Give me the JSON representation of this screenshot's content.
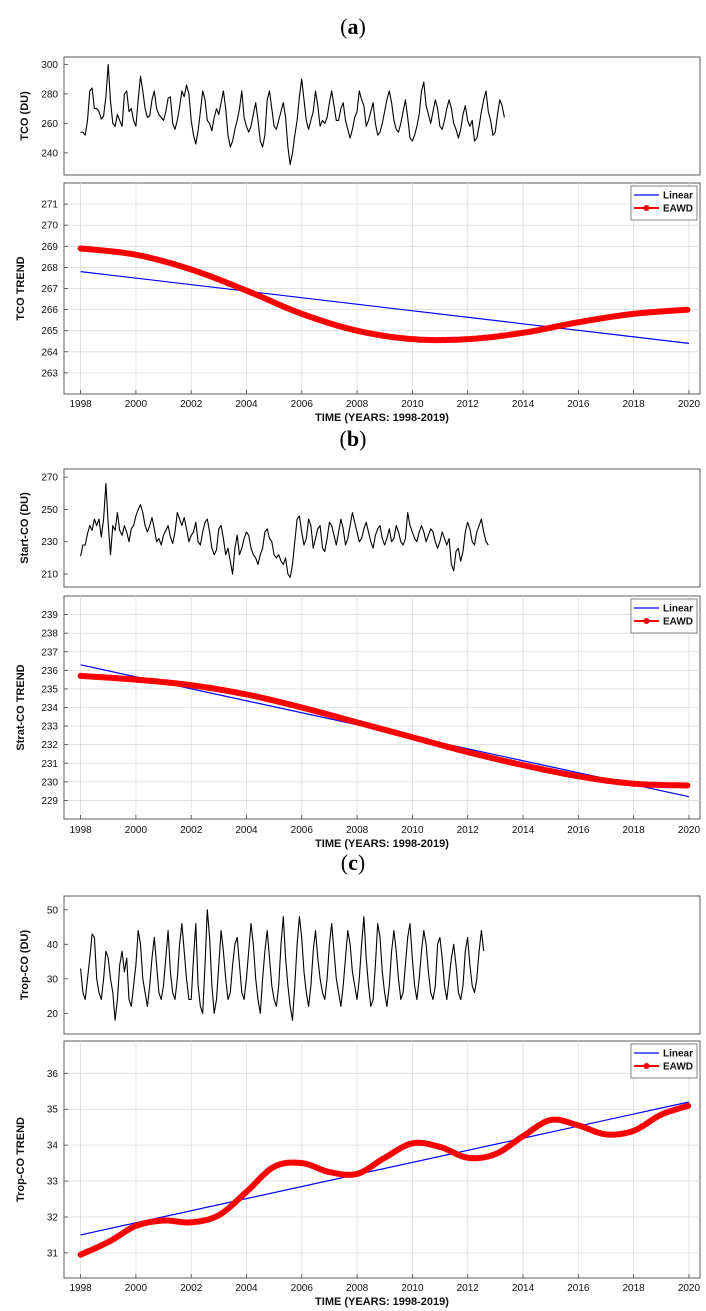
{
  "panels": [
    {
      "label": "a",
      "chart_data": [
        {
          "type": "line",
          "ylabel": "TCO (DU)",
          "ylim": [
            225,
            305
          ],
          "yticks": [
            240,
            260,
            280,
            300
          ],
          "xlim": [
            1997.4,
            2020.4
          ],
          "grid": false,
          "series": [
            {
              "color": "#000000",
              "x_start": 1998.0,
              "x_step": 0.0833,
              "values": [
                254,
                254,
                252,
                262,
                282,
                284,
                270,
                270,
                268,
                263,
                265,
                278,
                300,
                275,
                260,
                258,
                266,
                262,
                258,
                280,
                282,
                268,
                270,
                262,
                258,
                276,
                292,
                282,
                270,
                264,
                265,
                276,
                282,
                270,
                266,
                264,
                262,
                268,
                277,
                278,
                260,
                256,
                262,
                271,
                282,
                278,
                286,
                280,
                262,
                252,
                246,
                255,
                268,
                282,
                276,
                262,
                260,
                255,
                264,
                270,
                266,
                274,
                282,
                270,
                252,
                244,
                248,
                256,
                262,
                270,
                282,
                264,
                258,
                254,
                258,
                266,
                274,
                262,
                248,
                244,
                252,
                276,
                282,
                270,
                258,
                256,
                262,
                268,
                274,
                264,
                244,
                232,
                240,
                252,
                262,
                278,
                290,
                276,
                262,
                256,
                262,
                268,
                282,
                272,
                258,
                262,
                260,
                264,
                274,
                282,
                272,
                262,
                262,
                270,
                274,
                262,
                256,
                250,
                256,
                264,
                268,
                282,
                276,
                272,
                258,
                262,
                268,
                274,
                260,
                252,
                254,
                260,
                268,
                276,
                282,
                274,
                262,
                256,
                254,
                260,
                268,
                276,
                264,
                250,
                248,
                252,
                258,
                266,
                282,
                288,
                272,
                266,
                260,
                268,
                276,
                270,
                258,
                256,
                262,
                270,
                276,
                270,
                260,
                256,
                250,
                256,
                266,
                272,
                262,
                258,
                262,
                248,
                250,
                258,
                268,
                276,
                282,
                268,
                262,
                252,
                254,
                266,
                276,
                272,
                264
              ]
            }
          ]
        },
        {
          "type": "line",
          "ylabel": "TCO TREND",
          "xlabel": "TIME (YEARS: 1998-2019)",
          "ylim": [
            262,
            272
          ],
          "yticks": [
            263,
            264,
            265,
            266,
            267,
            268,
            269,
            270,
            271
          ],
          "xlim": [
            1997.4,
            2020.4
          ],
          "xticks": [
            1998,
            2000,
            2002,
            2004,
            2006,
            2008,
            2010,
            2012,
            2014,
            2016,
            2018,
            2020
          ],
          "grid": true,
          "legend_position": "top-right",
          "series": [
            {
              "name": "Linear",
              "color": "#0000ff",
              "x": [
                1998,
                2020
              ],
              "values": [
                267.8,
                264.4
              ]
            },
            {
              "name": "EAWD",
              "color": "#ff0000",
              "x": [
                1998,
                2000,
                2002,
                2004,
                2006,
                2008,
                2010,
                2012,
                2014,
                2016,
                2018,
                2020
              ],
              "values": [
                268.9,
                268.6,
                267.9,
                266.9,
                265.8,
                265.0,
                264.6,
                264.6,
                264.9,
                265.4,
                265.8,
                266.0
              ]
            }
          ]
        }
      ]
    },
    {
      "label": "b",
      "chart_data": [
        {
          "type": "line",
          "ylabel": "Start-CO (DU)",
          "ylim": [
            202,
            275
          ],
          "yticks": [
            210,
            230,
            250,
            270
          ],
          "xlim": [
            1997.4,
            2020.4
          ],
          "grid": false,
          "series": [
            {
              "color": "#000000",
              "x_start": 1998.0,
              "x_step": 0.0833,
              "values": [
                221,
                228,
                228,
                235,
                240,
                237,
                244,
                240,
                244,
                233,
                244,
                266,
                241,
                222,
                240,
                237,
                248,
                237,
                234,
                240,
                236,
                230,
                238,
                240,
                246,
                250,
                253,
                248,
                240,
                236,
                240,
                245,
                238,
                230,
                232,
                228,
                234,
                237,
                240,
                233,
                229,
                236,
                248,
                244,
                240,
                245,
                238,
                230,
                234,
                236,
                242,
                230,
                228,
                236,
                242,
                244,
                236,
                226,
                222,
                225,
                238,
                240,
                232,
                222,
                226,
                218,
                210,
                226,
                234,
                222,
                226,
                232,
                236,
                234,
                226,
                222,
                220,
                216,
                222,
                226,
                236,
                238,
                232,
                230,
                222,
                220,
                222,
                218,
                216,
                220,
                210,
                208,
                216,
                230,
                244,
                246,
                236,
                228,
                232,
                244,
                240,
                226,
                232,
                238,
                240,
                226,
                224,
                232,
                242,
                240,
                234,
                228,
                236,
                244,
                238,
                228,
                232,
                240,
                248,
                242,
                236,
                230,
                232,
                238,
                242,
                236,
                230,
                226,
                234,
                238,
                240,
                232,
                228,
                232,
                238,
                230,
                232,
                240,
                236,
                230,
                228,
                232,
                248,
                240,
                236,
                232,
                230,
                236,
                240,
                236,
                230,
                234,
                238,
                236,
                230,
                226,
                230,
                236,
                232,
                228,
                232,
                216,
                212,
                224,
                226,
                218,
                224,
                236,
                242,
                238,
                230,
                228,
                236,
                240,
                244,
                236,
                230,
                228
              ]
            }
          ]
        },
        {
          "type": "line",
          "ylabel": "Strat-CO TREND",
          "xlabel": "TIME (YEARS: 1998-2019)",
          "ylim": [
            228,
            240
          ],
          "yticks": [
            229,
            230,
            231,
            232,
            233,
            234,
            235,
            236,
            237,
            238,
            239
          ],
          "xlim": [
            1997.4,
            2020.4
          ],
          "xticks": [
            1998,
            2000,
            2002,
            2004,
            2006,
            2008,
            2010,
            2012,
            2014,
            2016,
            2018,
            2020
          ],
          "grid": true,
          "legend_position": "top-right",
          "series": [
            {
              "name": "Linear",
              "color": "#0000ff",
              "x": [
                1998,
                2020
              ],
              "values": [
                236.3,
                229.2
              ]
            },
            {
              "name": "EAWD",
              "color": "#ff0000",
              "x": [
                1998,
                2000,
                2002,
                2004,
                2006,
                2008,
                2010,
                2012,
                2014,
                2016,
                2018,
                2020
              ],
              "values": [
                235.7,
                235.5,
                235.2,
                234.7,
                234.0,
                233.2,
                232.4,
                231.6,
                230.9,
                230.3,
                229.9,
                229.8
              ]
            }
          ]
        }
      ]
    },
    {
      "label": "c",
      "chart_data": [
        {
          "type": "line",
          "ylabel": "Trop-CO (DU)",
          "ylim": [
            14,
            54
          ],
          "yticks": [
            20,
            30,
            40,
            50
          ],
          "xlim": [
            1997.4,
            2020.4
          ],
          "grid": false,
          "series": [
            {
              "color": "#000000",
              "x_start": 1998.0,
              "x_step": 0.0833,
              "values": [
                33,
                26,
                24,
                30,
                36,
                43,
                42,
                30,
                26,
                24,
                30,
                38,
                36,
                30,
                26,
                18,
                24,
                34,
                38,
                32,
                36,
                24,
                22,
                28,
                34,
                44,
                40,
                30,
                26,
                22,
                28,
                36,
                42,
                34,
                26,
                24,
                28,
                36,
                44,
                32,
                26,
                24,
                30,
                40,
                46,
                38,
                30,
                24,
                24,
                36,
                46,
                28,
                22,
                20,
                34,
                50,
                42,
                28,
                20,
                24,
                34,
                44,
                38,
                30,
                24,
                26,
                34,
                40,
                42,
                34,
                26,
                24,
                30,
                38,
                46,
                40,
                30,
                24,
                20,
                30,
                38,
                44,
                36,
                28,
                24,
                22,
                28,
                40,
                48,
                36,
                28,
                22,
                18,
                28,
                40,
                48,
                42,
                32,
                26,
                22,
                28,
                38,
                44,
                36,
                30,
                26,
                24,
                30,
                40,
                46,
                38,
                30,
                26,
                22,
                28,
                36,
                44,
                40,
                32,
                28,
                24,
                30,
                40,
                48,
                36,
                28,
                22,
                24,
                34,
                46,
                42,
                32,
                26,
                22,
                28,
                38,
                44,
                38,
                30,
                24,
                26,
                34,
                42,
                46,
                36,
                28,
                24,
                30,
                38,
                44,
                40,
                32,
                26,
                24,
                28,
                40,
                42,
                36,
                28,
                24,
                30,
                36,
                40,
                34,
                26,
                24,
                28,
                38,
                42,
                34,
                28,
                26,
                30,
                38,
                44,
                38
              ]
            }
          ]
        },
        {
          "type": "line",
          "ylabel": "Trop-CO TREND",
          "xlabel": "TIME (YEARS: 1998-2019)",
          "ylim": [
            30.3,
            36.9
          ],
          "yticks": [
            31,
            32,
            33,
            34,
            35,
            36
          ],
          "xlim": [
            1997.4,
            2020.4
          ],
          "xticks": [
            1998,
            2000,
            2002,
            2004,
            2006,
            2008,
            2010,
            2012,
            2014,
            2016,
            2018,
            2020
          ],
          "grid": true,
          "legend_position": "top-right",
          "series": [
            {
              "name": "Linear",
              "color": "#0000ff",
              "x": [
                1998,
                2020
              ],
              "values": [
                31.5,
                35.2
              ]
            },
            {
              "name": "EAWD",
              "color": "#ff0000",
              "x": [
                1998,
                1999,
                2000,
                2001,
                2002,
                2003,
                2004,
                2005,
                2006,
                2007,
                2008,
                2009,
                2010,
                2011,
                2012,
                2013,
                2014,
                2015,
                2016,
                2017,
                2018,
                2019,
                2020
              ],
              "values": [
                30.95,
                31.3,
                31.75,
                31.9,
                31.85,
                32.05,
                32.7,
                33.4,
                33.5,
                33.25,
                33.2,
                33.65,
                34.05,
                33.95,
                33.65,
                33.75,
                34.25,
                34.7,
                34.55,
                34.3,
                34.4,
                34.85,
                35.1
              ]
            }
          ]
        }
      ]
    }
  ]
}
